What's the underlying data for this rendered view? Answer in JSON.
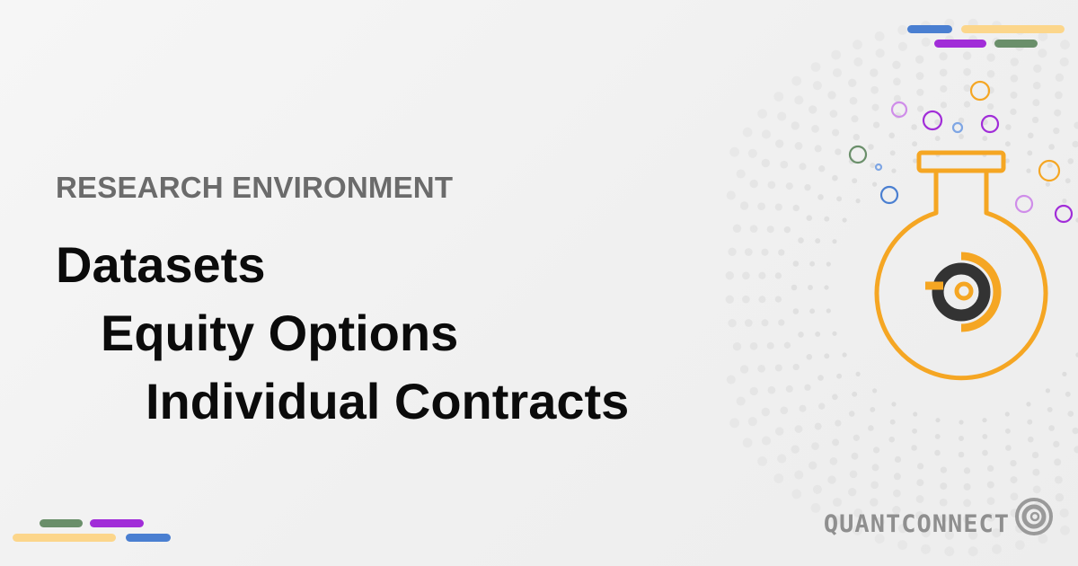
{
  "eyebrow": "RESEARCH ENVIRONMENT",
  "titles": [
    "Datasets",
    "Equity Options",
    "Individual Contracts"
  ],
  "brand": {
    "wordmark": "QUANTCONNECT",
    "logo_icon": "quantconnect-logo-icon"
  },
  "colors": {
    "background": "#f2f2f2",
    "heading": "#0b0b0b",
    "eyebrow": "#6b6b6b",
    "accent_orange": "#f5a623",
    "accent_blue": "#4a7fd1",
    "accent_purple": "#a12dd8",
    "accent_green": "#6a8f6a",
    "accent_yellow": "#fcd68b",
    "logo_dark": "#333333",
    "dots": "#d0d0d0"
  },
  "icons": [
    "flask-icon",
    "bubble-icons",
    "decorative-dots"
  ]
}
